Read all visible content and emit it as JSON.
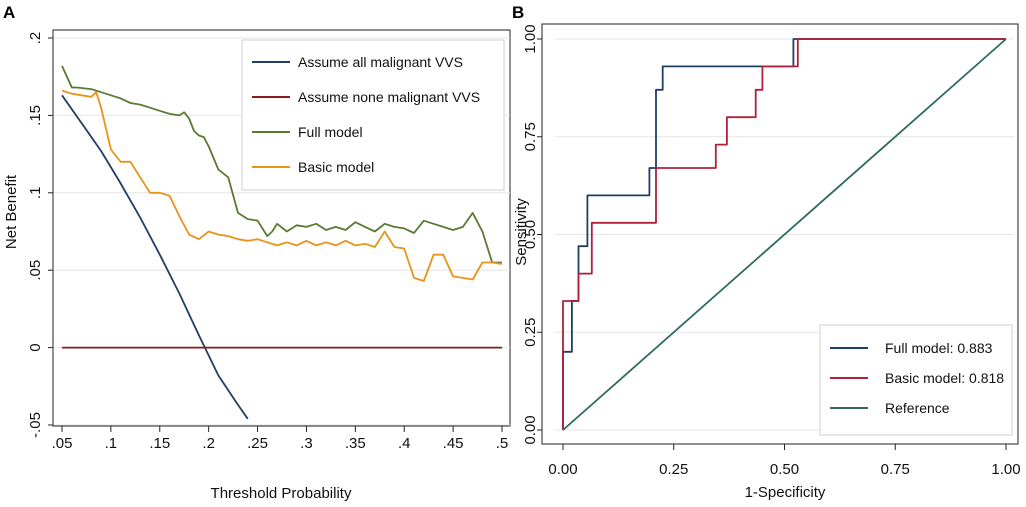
{
  "chart_data": [
    {
      "panel": "A",
      "type": "line",
      "title": "",
      "xlabel": "Threshold Probability",
      "ylabel": "Net Benefit",
      "xlim": [
        0.05,
        0.5
      ],
      "ylim": [
        -0.05,
        0.2
      ],
      "x_ticks": [
        0.05,
        0.1,
        0.15,
        0.2,
        0.25,
        0.3,
        0.35,
        0.4,
        0.45,
        0.5
      ],
      "x_tick_labels": [
        ".05",
        ".1",
        ".15",
        ".2",
        ".25",
        ".3",
        ".35",
        ".4",
        ".45",
        ".5"
      ],
      "y_ticks": [
        -0.05,
        0,
        0.05,
        0.1,
        0.15,
        0.2
      ],
      "y_tick_labels": [
        "-.05",
        "0",
        ".05",
        ".1",
        ".15",
        ".2"
      ],
      "grid": true,
      "legend_position": "top-right",
      "series": [
        {
          "name": "Assume all malignant VVS",
          "color": "#1f3f66",
          "x": [
            0.05,
            0.07,
            0.09,
            0.11,
            0.13,
            0.15,
            0.17,
            0.19,
            0.21,
            0.23,
            0.24
          ],
          "y": [
            0.163,
            0.145,
            0.127,
            0.106,
            0.084,
            0.06,
            0.035,
            0.008,
            -0.018,
            -0.037,
            -0.046
          ]
        },
        {
          "name": "Assume none malignant VVS",
          "color": "#8b1a1a",
          "x": [
            0.05,
            0.5
          ],
          "y": [
            0,
            0
          ]
        },
        {
          "name": "Full model",
          "color": "#5a7a32",
          "x": [
            0.05,
            0.06,
            0.065,
            0.08,
            0.09,
            0.1,
            0.11,
            0.12,
            0.13,
            0.14,
            0.15,
            0.16,
            0.17,
            0.175,
            0.18,
            0.185,
            0.19,
            0.195,
            0.2,
            0.21,
            0.22,
            0.23,
            0.24,
            0.25,
            0.26,
            0.265,
            0.27,
            0.28,
            0.29,
            0.3,
            0.31,
            0.32,
            0.33,
            0.34,
            0.35,
            0.36,
            0.37,
            0.38,
            0.39,
            0.4,
            0.41,
            0.42,
            0.43,
            0.44,
            0.45,
            0.46,
            0.47,
            0.48,
            0.49,
            0.5
          ],
          "y": [
            0.182,
            0.168,
            0.168,
            0.167,
            0.165,
            0.163,
            0.161,
            0.158,
            0.157,
            0.155,
            0.153,
            0.151,
            0.15,
            0.152,
            0.148,
            0.14,
            0.137,
            0.136,
            0.13,
            0.115,
            0.11,
            0.087,
            0.083,
            0.082,
            0.072,
            0.075,
            0.08,
            0.075,
            0.079,
            0.078,
            0.08,
            0.076,
            0.078,
            0.076,
            0.081,
            0.078,
            0.075,
            0.08,
            0.078,
            0.077,
            0.074,
            0.082,
            0.08,
            0.078,
            0.076,
            0.078,
            0.087,
            0.075,
            0.055,
            0.055
          ]
        },
        {
          "name": "Basic model",
          "color": "#e8931a",
          "x": [
            0.05,
            0.06,
            0.07,
            0.08,
            0.085,
            0.09,
            0.1,
            0.11,
            0.12,
            0.13,
            0.14,
            0.15,
            0.16,
            0.17,
            0.18,
            0.19,
            0.2,
            0.21,
            0.22,
            0.23,
            0.24,
            0.25,
            0.26,
            0.27,
            0.28,
            0.29,
            0.3,
            0.31,
            0.32,
            0.33,
            0.34,
            0.35,
            0.36,
            0.37,
            0.38,
            0.39,
            0.4,
            0.41,
            0.42,
            0.43,
            0.44,
            0.45,
            0.46,
            0.47,
            0.48,
            0.49,
            0.5
          ],
          "y": [
            0.166,
            0.164,
            0.163,
            0.162,
            0.165,
            0.155,
            0.128,
            0.12,
            0.12,
            0.11,
            0.1,
            0.1,
            0.098,
            0.085,
            0.073,
            0.07,
            0.075,
            0.073,
            0.072,
            0.07,
            0.069,
            0.07,
            0.068,
            0.066,
            0.068,
            0.066,
            0.069,
            0.066,
            0.068,
            0.066,
            0.069,
            0.066,
            0.067,
            0.065,
            0.075,
            0.065,
            0.064,
            0.045,
            0.043,
            0.06,
            0.06,
            0.046,
            0.045,
            0.044,
            0.055,
            0.055,
            0.054
          ]
        }
      ]
    },
    {
      "panel": "B",
      "type": "line",
      "title": "",
      "xlabel": "1-Specificity",
      "ylabel": "Sensitivity",
      "xlim": [
        0,
        1
      ],
      "ylim": [
        0,
        1
      ],
      "x_ticks": [
        0,
        0.25,
        0.5,
        0.75,
        1
      ],
      "x_tick_labels": [
        "0.00",
        "0.25",
        "0.50",
        "0.75",
        "1.00"
      ],
      "y_ticks": [
        0,
        0.25,
        0.5,
        0.75,
        1
      ],
      "y_tick_labels": [
        "0.00",
        "0.25",
        "0.50",
        "0.75",
        "1.00"
      ],
      "grid": true,
      "legend_position": "bottom-right",
      "series": [
        {
          "name": "Full model: 0.883",
          "color": "#1f3f66",
          "x": [
            0,
            0,
            0.02,
            0.02,
            0.035,
            0.035,
            0.055,
            0.055,
            0.195,
            0.195,
            0.21,
            0.21,
            0.225,
            0.225,
            0.52,
            0.52,
            1.0
          ],
          "y": [
            0,
            0.2,
            0.2,
            0.33,
            0.33,
            0.47,
            0.47,
            0.6,
            0.6,
            0.67,
            0.67,
            0.87,
            0.87,
            0.93,
            0.93,
            1.0,
            1.0
          ]
        },
        {
          "name": "Basic model: 0.818",
          "color": "#b0203a",
          "x": [
            0,
            0,
            0.035,
            0.035,
            0.065,
            0.065,
            0.21,
            0.21,
            0.345,
            0.345,
            0.37,
            0.37,
            0.435,
            0.435,
            0.45,
            0.45,
            0.53,
            0.53,
            1.0
          ],
          "y": [
            0,
            0.33,
            0.33,
            0.4,
            0.4,
            0.53,
            0.53,
            0.67,
            0.67,
            0.73,
            0.73,
            0.8,
            0.8,
            0.87,
            0.87,
            0.93,
            0.93,
            1.0,
            1.0
          ]
        },
        {
          "name": "Reference",
          "color": "#2e6b5e",
          "x": [
            0,
            1
          ],
          "y": [
            0,
            1
          ]
        }
      ]
    }
  ]
}
